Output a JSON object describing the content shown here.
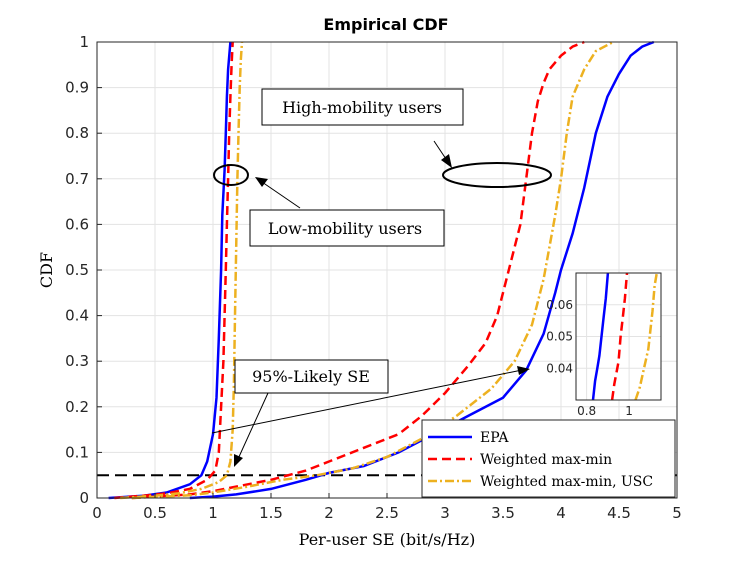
{
  "chart_data": {
    "type": "line",
    "title": "Empirical CDF",
    "xlabel": "Per-user SE (bit/s/Hz)",
    "ylabel": "CDF",
    "xlim": [
      0,
      5
    ],
    "ylim": [
      0,
      1
    ],
    "xticks": [
      "0",
      "0.5",
      "1",
      "1.5",
      "2",
      "2.5",
      "3",
      "3.5",
      "4",
      "4.5",
      "5"
    ],
    "yticks": [
      "0",
      "0.1",
      "0.2",
      "0.3",
      "0.4",
      "0.5",
      "0.6",
      "0.7",
      "0.8",
      "0.9",
      "1"
    ],
    "grid": true,
    "legend_position": "bottom-right",
    "series": [
      {
        "name": "EPA",
        "color": "#0000ff",
        "style": "solid",
        "low_mobility": [
          [
            0.1,
            0
          ],
          [
            0.4,
            0.005
          ],
          [
            0.6,
            0.012
          ],
          [
            0.8,
            0.03
          ],
          [
            0.9,
            0.05
          ],
          [
            0.95,
            0.08
          ],
          [
            1.0,
            0.14
          ],
          [
            1.03,
            0.22
          ],
          [
            1.05,
            0.35
          ],
          [
            1.07,
            0.5
          ],
          [
            1.08,
            0.62
          ],
          [
            1.1,
            0.72
          ],
          [
            1.11,
            0.8
          ],
          [
            1.12,
            0.88
          ],
          [
            1.13,
            0.94
          ],
          [
            1.15,
            1.0
          ]
        ],
        "high_mobility": [
          [
            0.8,
            0
          ],
          [
            1.0,
            0.003
          ],
          [
            1.2,
            0.008
          ],
          [
            1.5,
            0.02
          ],
          [
            1.8,
            0.04
          ],
          [
            2.0,
            0.055
          ],
          [
            2.3,
            0.07
          ],
          [
            2.6,
            0.1
          ],
          [
            2.9,
            0.14
          ],
          [
            3.2,
            0.18
          ],
          [
            3.5,
            0.22
          ],
          [
            3.7,
            0.28
          ],
          [
            3.85,
            0.36
          ],
          [
            3.95,
            0.45
          ],
          [
            4.0,
            0.5
          ],
          [
            4.1,
            0.58
          ],
          [
            4.2,
            0.68
          ],
          [
            4.3,
            0.8
          ],
          [
            4.4,
            0.88
          ],
          [
            4.5,
            0.93
          ],
          [
            4.6,
            0.97
          ],
          [
            4.7,
            0.99
          ],
          [
            4.8,
            1.0
          ]
        ]
      },
      {
        "name": "Weighted max-min",
        "color": "#ff0000",
        "style": "dashed",
        "low_mobility": [
          [
            0.15,
            0
          ],
          [
            0.4,
            0.005
          ],
          [
            0.6,
            0.01
          ],
          [
            0.8,
            0.02
          ],
          [
            0.95,
            0.04
          ],
          [
            1.02,
            0.06
          ],
          [
            1.05,
            0.1
          ],
          [
            1.07,
            0.2
          ],
          [
            1.09,
            0.3
          ],
          [
            1.1,
            0.4
          ],
          [
            1.11,
            0.5
          ],
          [
            1.12,
            0.6
          ],
          [
            1.13,
            0.7
          ],
          [
            1.14,
            0.8
          ],
          [
            1.15,
            0.88
          ],
          [
            1.16,
            0.95
          ],
          [
            1.17,
            1.0
          ]
        ],
        "high_mobility": [
          [
            0.3,
            0
          ],
          [
            0.8,
            0.008
          ],
          [
            1.0,
            0.015
          ],
          [
            1.2,
            0.025
          ],
          [
            1.5,
            0.04
          ],
          [
            1.8,
            0.06
          ],
          [
            2.0,
            0.08
          ],
          [
            2.3,
            0.11
          ],
          [
            2.6,
            0.14
          ],
          [
            2.8,
            0.18
          ],
          [
            3.0,
            0.23
          ],
          [
            3.2,
            0.29
          ],
          [
            3.35,
            0.34
          ],
          [
            3.45,
            0.4
          ],
          [
            3.5,
            0.45
          ],
          [
            3.6,
            0.55
          ],
          [
            3.65,
            0.6
          ],
          [
            3.7,
            0.7
          ],
          [
            3.75,
            0.8
          ],
          [
            3.8,
            0.87
          ],
          [
            3.85,
            0.91
          ],
          [
            3.9,
            0.94
          ],
          [
            4.0,
            0.97
          ],
          [
            4.1,
            0.99
          ],
          [
            4.2,
            1.0
          ]
        ]
      },
      {
        "name": "Weighted max-min, USC",
        "color": "#edb120",
        "style": "dashdot",
        "low_mobility": [
          [
            0.2,
            0
          ],
          [
            0.5,
            0.005
          ],
          [
            0.7,
            0.01
          ],
          [
            0.9,
            0.02
          ],
          [
            1.05,
            0.035
          ],
          [
            1.12,
            0.05
          ],
          [
            1.15,
            0.08
          ],
          [
            1.17,
            0.15
          ],
          [
            1.18,
            0.25
          ],
          [
            1.19,
            0.4
          ],
          [
            1.2,
            0.55
          ],
          [
            1.21,
            0.7
          ],
          [
            1.22,
            0.8
          ],
          [
            1.23,
            0.9
          ],
          [
            1.24,
            0.96
          ],
          [
            1.25,
            1.0
          ]
        ],
        "high_mobility": [
          [
            0.3,
            0
          ],
          [
            0.8,
            0.006
          ],
          [
            1.0,
            0.012
          ],
          [
            1.3,
            0.025
          ],
          [
            1.6,
            0.04
          ],
          [
            1.9,
            0.05
          ],
          [
            2.2,
            0.065
          ],
          [
            2.5,
            0.09
          ],
          [
            2.8,
            0.13
          ],
          [
            3.1,
            0.18
          ],
          [
            3.4,
            0.24
          ],
          [
            3.6,
            0.3
          ],
          [
            3.75,
            0.38
          ],
          [
            3.85,
            0.48
          ],
          [
            3.9,
            0.55
          ],
          [
            3.95,
            0.62
          ],
          [
            4.0,
            0.7
          ],
          [
            4.05,
            0.8
          ],
          [
            4.1,
            0.88
          ],
          [
            4.2,
            0.94
          ],
          [
            4.3,
            0.98
          ],
          [
            4.45,
            1.0
          ]
        ]
      }
    ],
    "reference_line": {
      "y": 0.05,
      "x_range": [
        0,
        5
      ],
      "style": "dashed",
      "color": "#000000"
    },
    "annotations": [
      {
        "text": "High-mobility users",
        "ellipse_center": [
          3.45,
          0.7
        ]
      },
      {
        "text": "Low-mobility users",
        "ellipse_center": [
          1.1,
          0.71
        ]
      },
      {
        "text": "95%-Likely SE",
        "points_to": [
          1.15,
          0.05
        ]
      }
    ],
    "inset": {
      "xlim": [
        0.75,
        1.15
      ],
      "ylim": [
        0.03,
        0.07
      ],
      "xticks": [
        "0.8",
        "1"
      ],
      "yticks": [
        "0.04",
        "0.05",
        "0.06"
      ],
      "series": [
        {
          "name": "EPA",
          "points": [
            [
              0.83,
              0.03
            ],
            [
              0.84,
              0.036
            ],
            [
              0.85,
              0.04
            ],
            [
              0.86,
              0.044
            ],
            [
              0.87,
              0.05
            ],
            [
              0.88,
              0.056
            ],
            [
              0.89,
              0.062
            ],
            [
              0.9,
              0.07
            ]
          ]
        },
        {
          "name": "Weighted max-min",
          "points": [
            [
              0.92,
              0.03
            ],
            [
              0.93,
              0.035
            ],
            [
              0.95,
              0.042
            ],
            [
              0.96,
              0.05
            ],
            [
              0.97,
              0.056
            ],
            [
              0.98,
              0.062
            ],
            [
              0.99,
              0.07
            ]
          ]
        },
        {
          "name": "Weighted max-min, USC",
          "points": [
            [
              1.03,
              0.03
            ],
            [
              1.05,
              0.034
            ],
            [
              1.07,
              0.04
            ],
            [
              1.09,
              0.046
            ],
            [
              1.1,
              0.052
            ],
            [
              1.11,
              0.058
            ],
            [
              1.12,
              0.066
            ],
            [
              1.13,
              0.07
            ]
          ]
        }
      ]
    }
  }
}
